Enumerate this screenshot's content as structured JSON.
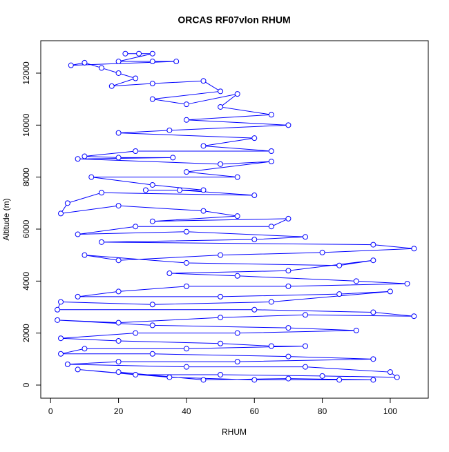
{
  "chart_data": {
    "type": "line",
    "title": "ORCAS RF07vlon RHUM",
    "xlabel": "RHUM",
    "ylabel": "Altitude (m)",
    "color": "#0000ff",
    "xlim": [
      -2.9,
      111.2
    ],
    "ylim": [
      -504,
      13247
    ],
    "xticks": [
      0,
      20,
      40,
      60,
      80,
      100
    ],
    "yticks": [
      0,
      2000,
      4000,
      6000,
      8000,
      10000,
      12000
    ],
    "x": [
      22,
      26,
      30,
      20,
      30,
      37,
      6,
      10,
      15,
      20,
      25,
      18,
      30,
      45,
      50,
      30,
      40,
      55,
      50,
      65,
      40,
      70,
      35,
      20,
      60,
      45,
      65,
      25,
      10,
      20,
      36,
      8,
      50,
      65,
      40,
      55,
      12,
      30,
      45,
      28,
      38,
      60,
      15,
      5,
      3,
      20,
      45,
      55,
      30,
      70,
      65,
      25,
      8,
      40,
      75,
      60,
      15,
      95,
      107,
      80,
      50,
      20,
      10,
      40,
      85,
      95,
      70,
      35,
      55,
      90,
      105,
      70,
      40,
      20,
      8,
      50,
      85,
      100,
      65,
      30,
      3,
      2,
      60,
      95,
      107,
      75,
      50,
      20,
      2,
      30,
      70,
      90,
      55,
      25,
      3,
      20,
      50,
      65,
      75,
      40,
      10,
      3,
      30,
      70,
      95,
      55,
      20,
      5,
      40,
      75,
      100,
      102,
      80,
      50,
      25,
      8,
      35,
      60,
      85,
      95,
      70,
      45,
      20
    ],
    "values": [
      12750,
      12750,
      12750,
      12450,
      12450,
      12450,
      12300,
      12400,
      12200,
      12000,
      11800,
      11500,
      11600,
      11700,
      11300,
      11000,
      10800,
      11200,
      10700,
      10400,
      10200,
      10000,
      9800,
      9700,
      9500,
      9200,
      9000,
      9000,
      8800,
      8750,
      8750,
      8700,
      8500,
      8600,
      8200,
      8000,
      8000,
      7700,
      7500,
      7500,
      7500,
      7300,
      7400,
      7000,
      6600,
      6900,
      6700,
      6500,
      6300,
      6400,
      6100,
      6100,
      5800,
      5900,
      5700,
      5600,
      5500,
      5400,
      5250,
      5100,
      5000,
      4800,
      5000,
      4700,
      4600,
      4800,
      4400,
      4300,
      4200,
      4000,
      3900,
      3800,
      3800,
      3600,
      3400,
      3400,
      3500,
      3600,
      3200,
      3100,
      3200,
      2900,
      2900,
      2800,
      2650,
      2700,
      2600,
      2400,
      2500,
      2300,
      2200,
      2100,
      2000,
      2000,
      1800,
      1700,
      1600,
      1500,
      1500,
      1400,
      1400,
      1200,
      1200,
      1100,
      1000,
      900,
      900,
      800,
      700,
      700,
      500,
      300,
      350,
      400,
      400,
      600,
      300,
      200,
      200,
      200,
      250,
      200,
      500
    ]
  }
}
